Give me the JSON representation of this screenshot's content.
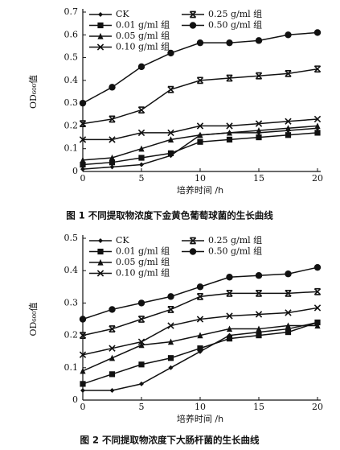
{
  "chart_data": [
    {
      "type": "line",
      "title": "图 1  不同提取物浓度下金黄色葡萄球菌的生长曲线",
      "xlabel": "培养时间 /h",
      "ylabel": "OD₆₀₀值",
      "x": [
        0,
        2.5,
        5,
        7.5,
        10,
        12.5,
        15,
        17.5,
        20
      ],
      "xlim": [
        0,
        20
      ],
      "xticks": [
        0,
        5,
        10,
        15,
        20
      ],
      "ylim": [
        0,
        0.7
      ],
      "yticks": [
        0,
        0.1,
        0.2,
        0.3,
        0.4,
        0.5,
        0.6,
        0.7
      ],
      "legend": "upper left",
      "grid": false,
      "series": [
        {
          "name": "CK",
          "color": "#111111",
          "marker": "diamond",
          "values": [
            0.01,
            0.02,
            0.03,
            0.07,
            0.16,
            0.17,
            0.17,
            0.18,
            0.19
          ]
        },
        {
          "name": "0.01 g/ml 组",
          "color": "#111111",
          "marker": "square",
          "values": [
            0.03,
            0.04,
            0.06,
            0.08,
            0.13,
            0.14,
            0.15,
            0.16,
            0.17
          ]
        },
        {
          "name": "0.05 g/ml 组",
          "color": "#111111",
          "marker": "triangle",
          "values": [
            0.05,
            0.06,
            0.1,
            0.14,
            0.16,
            0.17,
            0.18,
            0.19,
            0.2
          ]
        },
        {
          "name": "0.10 g/ml 组",
          "color": "#111111",
          "marker": "x",
          "values": [
            0.14,
            0.14,
            0.17,
            0.17,
            0.2,
            0.2,
            0.21,
            0.22,
            0.23
          ]
        },
        {
          "name": "0.25 g/ml 组",
          "color": "#111111",
          "marker": "asterisk",
          "values": [
            0.21,
            0.23,
            0.27,
            0.36,
            0.4,
            0.41,
            0.42,
            0.43,
            0.45
          ]
        },
        {
          "name": "0.50 g/ml 组",
          "color": "#111111",
          "marker": "circle",
          "values": [
            0.3,
            0.37,
            0.46,
            0.52,
            0.565,
            0.565,
            0.575,
            0.6,
            0.61
          ]
        }
      ]
    },
    {
      "type": "line",
      "title": "图 2  不同提取物浓度下大肠杆菌的生长曲线",
      "xlabel": "培养时间 /h",
      "ylabel": "OD₆₀₀值",
      "x": [
        0,
        2.5,
        5,
        7.5,
        10,
        12.5,
        15,
        17.5,
        20
      ],
      "xlim": [
        0,
        20
      ],
      "xticks": [
        0,
        5,
        10,
        15,
        20
      ],
      "ylim": [
        0,
        0.5
      ],
      "yticks": [
        0,
        0.1,
        0.2,
        0.3,
        0.4,
        0.5
      ],
      "legend": "upper left",
      "grid": false,
      "series": [
        {
          "name": "CK",
          "color": "#111111",
          "marker": "diamond",
          "values": [
            0.03,
            0.03,
            0.05,
            0.1,
            0.15,
            0.2,
            0.21,
            0.22,
            0.24
          ]
        },
        {
          "name": "0.01 g/ml 组",
          "color": "#111111",
          "marker": "square",
          "values": [
            0.05,
            0.08,
            0.11,
            0.13,
            0.16,
            0.19,
            0.2,
            0.21,
            0.24
          ]
        },
        {
          "name": "0.05 g/ml 组",
          "color": "#111111",
          "marker": "triangle",
          "values": [
            0.09,
            0.13,
            0.17,
            0.18,
            0.2,
            0.22,
            0.22,
            0.23,
            0.23
          ]
        },
        {
          "name": "0.10 g/ml 组",
          "color": "#111111",
          "marker": "x",
          "values": [
            0.14,
            0.16,
            0.18,
            0.23,
            0.25,
            0.26,
            0.265,
            0.27,
            0.285
          ]
        },
        {
          "name": "0.25 g/ml 组",
          "color": "#111111",
          "marker": "asterisk",
          "values": [
            0.2,
            0.22,
            0.25,
            0.28,
            0.32,
            0.33,
            0.33,
            0.33,
            0.335
          ]
        },
        {
          "name": "0.50 g/ml 组",
          "color": "#111111",
          "marker": "circle",
          "values": [
            0.25,
            0.28,
            0.3,
            0.32,
            0.35,
            0.38,
            0.385,
            0.39,
            0.41
          ]
        }
      ]
    }
  ]
}
